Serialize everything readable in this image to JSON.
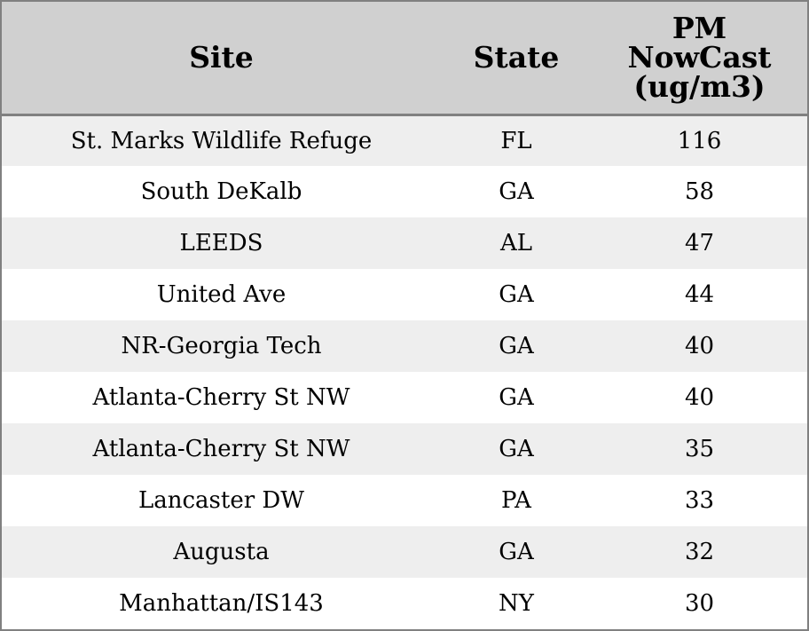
{
  "table": {
    "headers": {
      "site": "Site",
      "state": "State",
      "pm_line1": "PM",
      "pm_line2": "NowCast",
      "pm_line3": "(ug/m3)"
    },
    "rows": [
      {
        "site": "St. Marks Wildlife Refuge",
        "state": "FL",
        "pm": "116"
      },
      {
        "site": "South DeKalb",
        "state": "GA",
        "pm": "58"
      },
      {
        "site": "LEEDS",
        "state": "AL",
        "pm": "47"
      },
      {
        "site": "United Ave",
        "state": "GA",
        "pm": "44"
      },
      {
        "site": "NR-Georgia Tech",
        "state": "GA",
        "pm": "40"
      },
      {
        "site": "Atlanta-Cherry St NW",
        "state": "GA",
        "pm": "40"
      },
      {
        "site": "Atlanta-Cherry St NW",
        "state": "GA",
        "pm": "35"
      },
      {
        "site": "Lancaster DW",
        "state": "PA",
        "pm": "33"
      },
      {
        "site": "Augusta",
        "state": "GA",
        "pm": "32"
      },
      {
        "site": "Manhattan/IS143",
        "state": "NY",
        "pm": "30"
      }
    ]
  }
}
